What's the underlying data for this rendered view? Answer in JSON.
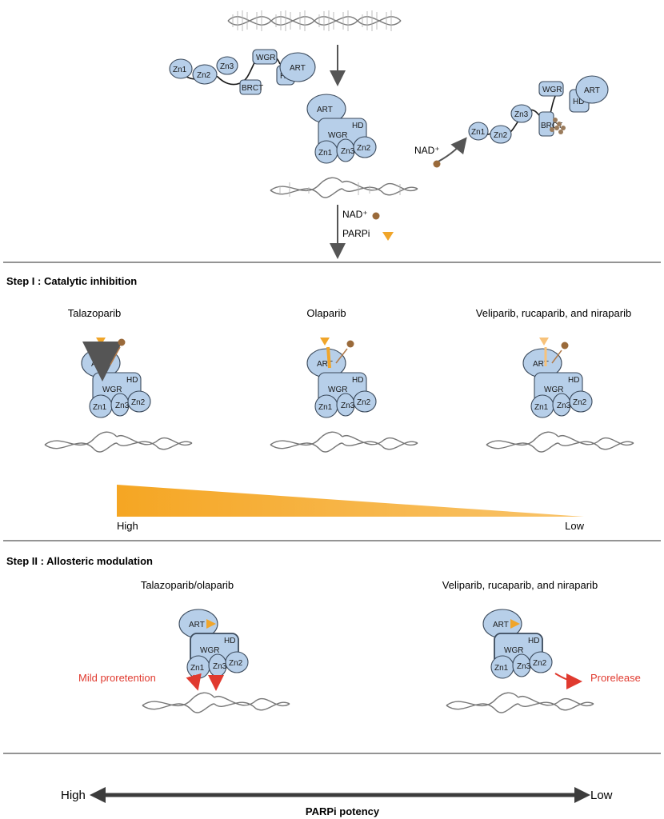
{
  "top": {
    "domains": {
      "zn1": "Zn1",
      "zn2": "Zn2",
      "zn3": "Zn3",
      "brct": "BRCT",
      "wgr": "WGR",
      "hd": "HD",
      "art": "ART"
    },
    "nad_label": "NAD⁺",
    "parpi_label": "PARPi"
  },
  "step1": {
    "title": "Step I : Catalytic inhibition",
    "drugs": [
      "Talazoparib",
      "Olaparib",
      "Veliparib, rucaparib, and niraparib"
    ],
    "gradient_high": "High",
    "gradient_low": "Low"
  },
  "step2": {
    "title": "Step II : Allosteric modulation",
    "left_drug": "Talazoparib/olaparib",
    "right_drug": "Veliparib, rucaparib, and niraparib",
    "left_effect": "Mild proretention",
    "right_effect": "Prorelease"
  },
  "potency": {
    "high": "High",
    "low": "Low",
    "label": "PARPi potency"
  },
  "colors": {
    "domain_fill": "#b7cfe9",
    "inhibitor": "#f0a52a",
    "nad": "#9a6a3a",
    "effect_red": "#e03a2f"
  }
}
